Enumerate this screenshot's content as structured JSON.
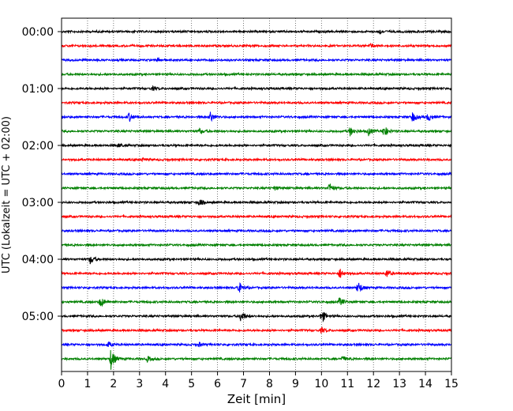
{
  "chart_data": {
    "type": "line",
    "title": "",
    "xlabel": "Zeit  [min]",
    "ylabel": "UTC (Lokalzeit = UTC + 02:00)",
    "xlim": [
      0,
      15
    ],
    "x_ticks": [
      "0",
      "1",
      "2",
      "3",
      "4",
      "5",
      "6",
      "7",
      "8",
      "9",
      "10",
      "11",
      "12",
      "13",
      "14",
      "15"
    ],
    "y_ticks": [
      {
        "label": "00:00",
        "trace": 0
      },
      {
        "label": "01:00",
        "trace": 4
      },
      {
        "label": "02:00",
        "trace": 8
      },
      {
        "label": "03:00",
        "trace": 12
      },
      {
        "label": "04:00",
        "trace": 16
      },
      {
        "label": "05:00",
        "trace": 20
      }
    ],
    "grid": "vertical dotted",
    "trace_interval_min": 15,
    "colors": [
      "#000000",
      "#ff0000",
      "#0000ff",
      "#008000"
    ],
    "series": [
      {
        "start": "00:00",
        "color": "#000000",
        "events": [
          {
            "t": 12.2,
            "amp": 0.3
          }
        ]
      },
      {
        "start": "00:15",
        "color": "#ff0000",
        "events": [
          {
            "t": 11.9,
            "amp": 0.25
          }
        ]
      },
      {
        "start": "00:30",
        "color": "#0000ff",
        "events": [
          {
            "t": 3.7,
            "amp": 0.2
          }
        ]
      },
      {
        "start": "00:45",
        "color": "#008000",
        "events": []
      },
      {
        "start": "01:00",
        "color": "#000000",
        "events": [
          {
            "t": 3.5,
            "amp": 0.2
          }
        ]
      },
      {
        "start": "01:15",
        "color": "#ff0000",
        "events": []
      },
      {
        "start": "01:30",
        "color": "#0000ff",
        "events": [
          {
            "t": 2.6,
            "amp": 0.5
          },
          {
            "t": 5.7,
            "amp": 0.7
          },
          {
            "t": 13.5,
            "amp": 0.6
          },
          {
            "t": 14.1,
            "amp": 0.5
          }
        ]
      },
      {
        "start": "01:45",
        "color": "#008000",
        "events": [
          {
            "t": 5.3,
            "amp": 0.3
          },
          {
            "t": 11.1,
            "amp": 0.5
          },
          {
            "t": 11.8,
            "amp": 0.5
          },
          {
            "t": 12.4,
            "amp": 0.7
          }
        ]
      },
      {
        "start": "02:00",
        "color": "#000000",
        "events": [
          {
            "t": 2.2,
            "amp": 0.2
          }
        ]
      },
      {
        "start": "02:15",
        "color": "#ff0000",
        "events": [
          {
            "t": 3.1,
            "amp": 0.15
          }
        ]
      },
      {
        "start": "02:30",
        "color": "#0000ff",
        "events": []
      },
      {
        "start": "02:45",
        "color": "#008000",
        "events": [
          {
            "t": 10.3,
            "amp": 0.6
          },
          {
            "t": 8.2,
            "amp": 0.2
          }
        ]
      },
      {
        "start": "03:00",
        "color": "#000000",
        "events": [
          {
            "t": 5.3,
            "amp": 0.4
          }
        ]
      },
      {
        "start": "03:15",
        "color": "#ff0000",
        "events": []
      },
      {
        "start": "03:30",
        "color": "#0000ff",
        "events": []
      },
      {
        "start": "03:45",
        "color": "#008000",
        "events": []
      },
      {
        "start": "04:00",
        "color": "#000000",
        "events": [
          {
            "t": 1.1,
            "amp": 0.5
          }
        ]
      },
      {
        "start": "04:15",
        "color": "#ff0000",
        "events": [
          {
            "t": 10.7,
            "amp": 0.6
          },
          {
            "t": 12.5,
            "amp": 0.5
          }
        ]
      },
      {
        "start": "04:30",
        "color": "#0000ff",
        "events": [
          {
            "t": 6.8,
            "amp": 0.7
          },
          {
            "t": 11.4,
            "amp": 0.8
          }
        ]
      },
      {
        "start": "04:45",
        "color": "#008000",
        "events": [
          {
            "t": 1.5,
            "amp": 0.6
          },
          {
            "t": 10.7,
            "amp": 0.5
          }
        ]
      },
      {
        "start": "05:00",
        "color": "#000000",
        "events": [
          {
            "t": 6.9,
            "amp": 0.7
          },
          {
            "t": 10.0,
            "amp": 0.8
          }
        ]
      },
      {
        "start": "05:15",
        "color": "#ff0000",
        "events": [
          {
            "t": 10.0,
            "amp": 0.3
          }
        ]
      },
      {
        "start": "05:30",
        "color": "#0000ff",
        "events": [
          {
            "t": 1.8,
            "amp": 0.3
          },
          {
            "t": 5.3,
            "amp": 0.2
          }
        ]
      },
      {
        "start": "05:45",
        "color": "#008000",
        "events": [
          {
            "t": 1.9,
            "amp": 1.2
          },
          {
            "t": 3.3,
            "amp": 0.3
          },
          {
            "t": 10.8,
            "amp": 0.3
          }
        ]
      }
    ]
  }
}
